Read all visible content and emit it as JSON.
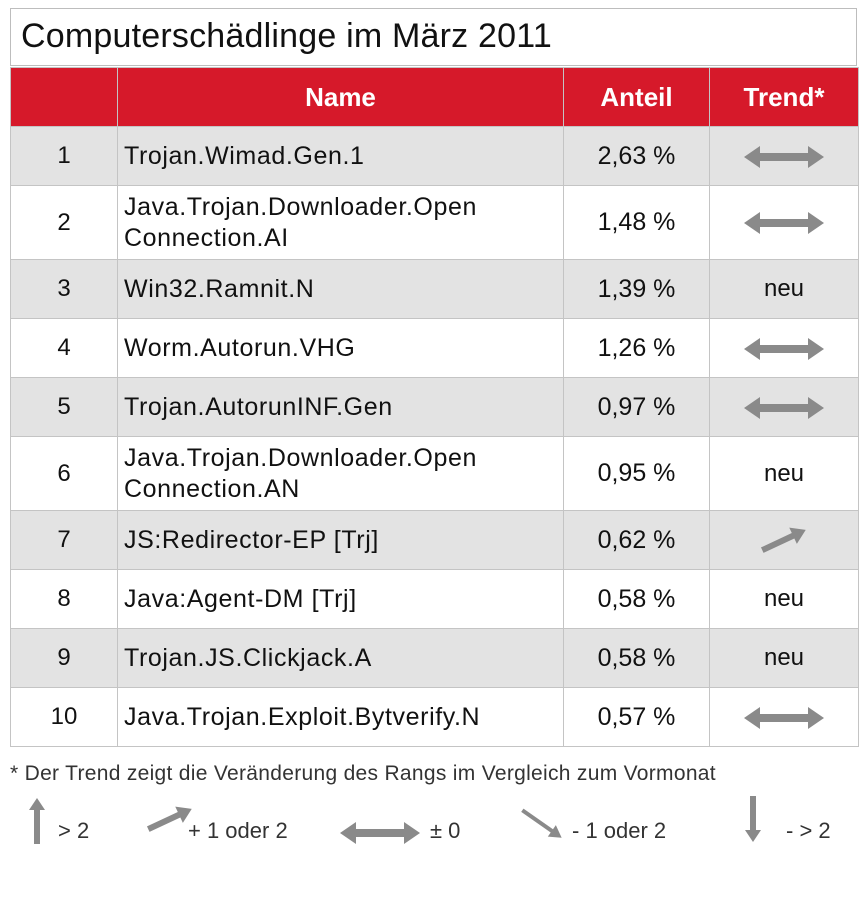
{
  "title": "Computerschädlinge im März 2011",
  "table": {
    "headers": {
      "rank": "",
      "name": "Name",
      "share": "Anteil",
      "trend": "Trend*"
    },
    "rows": [
      {
        "rank": "1",
        "name": "Trojan.Wimad.Gen.1",
        "share": "2,63 %",
        "trend": "both-arrow-icon"
      },
      {
        "rank": "2",
        "name": "Java.Trojan.Downloader.Open Connection.AI",
        "name_line1": "Java.Trojan.Downloader.Open",
        "name_line2": "Connection.AI",
        "share": "1,48 %",
        "trend": "both-arrow-icon"
      },
      {
        "rank": "3",
        "name": "Win32.Ramnit.N",
        "share": "1,39 %",
        "trend_text": "neu"
      },
      {
        "rank": "4",
        "name": "Worm.Autorun.VHG",
        "share": "1,26 %",
        "trend": "both-arrow-icon"
      },
      {
        "rank": "5",
        "name": "Trojan.AutorunINF.Gen",
        "share": "0,97 %",
        "trend": "both-arrow-icon"
      },
      {
        "rank": "6",
        "name": "Java.Trojan.Downloader.Open Connection.AN",
        "name_line1": "Java.Trojan.Downloader.Open",
        "name_line2": "Connection.AN",
        "share": "0,95 %",
        "trend_text": "neu"
      },
      {
        "rank": "7",
        "name": "JS:Redirector-EP [Trj]",
        "share": "0,62 %",
        "trend": "up-right-arrow-icon"
      },
      {
        "rank": "8",
        "name": "Java:Agent-DM [Trj]",
        "share": "0,58 %",
        "trend_text": "neu"
      },
      {
        "rank": "9",
        "name": "Trojan.JS.Clickjack.A",
        "share": "0,58 %",
        "trend_text": "neu"
      },
      {
        "rank": "10",
        "name": "Java.Trojan.Exploit.Bytverify.N",
        "share": "0,57 %",
        "trend": "both-arrow-icon"
      }
    ]
  },
  "footnote": "* Der Trend zeigt die Veränderung des Rangs im Vergleich zum Vormonat",
  "legend": [
    {
      "icon": "up-arrow-icon",
      "label": "> 2"
    },
    {
      "icon": "up-right-arrow-icon",
      "label": "+ 1 oder 2"
    },
    {
      "icon": "both-arrow-icon",
      "label": "± 0"
    },
    {
      "icon": "down-right-arrow-icon",
      "label": "- 1 oder  2"
    },
    {
      "icon": "down-arrow-icon",
      "label": "- > 2"
    }
  ],
  "colors": {
    "header_bg": "#d6192a",
    "row_alt": "#e3e3e3",
    "arrow": "#8a8a8a"
  }
}
